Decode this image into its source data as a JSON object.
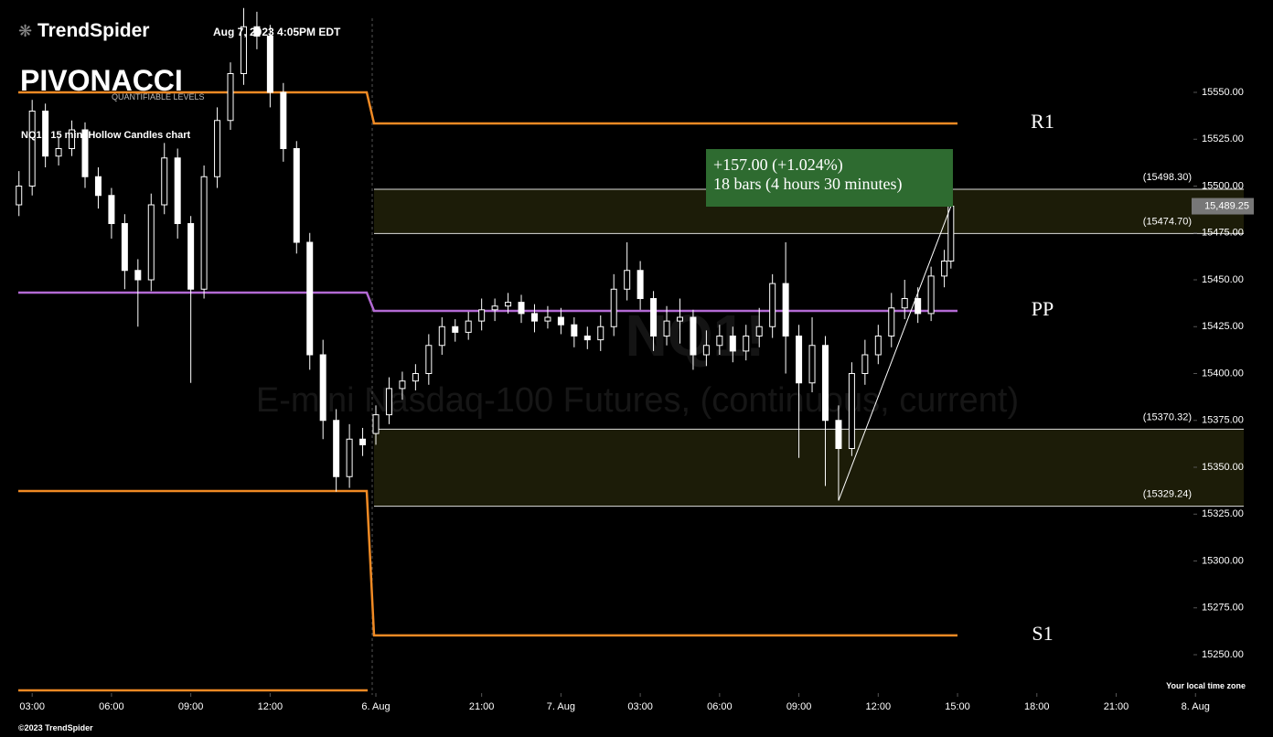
{
  "header": {
    "brand": "TrendSpider",
    "timestamp": "Aug 7, 2023 4:05PM EDT",
    "indicator": "PIVONACCI",
    "indicator_sub": "QUANTIFIABLE LEVELS",
    "chart_desc": "NQ1!, 15 min, Hollow Candles chart"
  },
  "footer": {
    "copyright": "©2023 TrendSpider",
    "timezone": "Your local time zone"
  },
  "chart_data": {
    "type": "candlestick",
    "watermark_symbol": "NQ1!",
    "watermark_name": "E-mini Nasdaq-100 Futures, (continuous, current)",
    "xlim": [
      -2.1,
      183.3
    ],
    "xticks": [
      {
        "value": 0,
        "label": "03:00"
      },
      {
        "value": 12,
        "label": "06:00"
      },
      {
        "value": 24,
        "label": "09:00"
      },
      {
        "value": 36,
        "label": "12:00"
      },
      {
        "value": 52,
        "label": "6. Aug"
      },
      {
        "value": 68,
        "label": "21:00"
      },
      {
        "value": 80,
        "label": "7. Aug"
      },
      {
        "value": 92,
        "label": "03:00"
      },
      {
        "value": 104,
        "label": "06:00"
      },
      {
        "value": 116,
        "label": "09:00"
      },
      {
        "value": 128,
        "label": "12:00"
      },
      {
        "value": 140,
        "label": "15:00"
      },
      {
        "value": 152,
        "label": "18:00"
      },
      {
        "value": 164,
        "label": "21:00"
      },
      {
        "value": 176,
        "label": "8. Aug"
      }
    ],
    "ylim": [
      15228.54,
      15599.27
    ],
    "yticks": [
      {
        "value": 15250,
        "label": "15250.00"
      },
      {
        "value": 15275,
        "label": "15275.00"
      },
      {
        "value": 15300,
        "label": "15300.00"
      },
      {
        "value": 15325,
        "label": "15325.00"
      },
      {
        "value": 15350,
        "label": "15350.00"
      },
      {
        "value": 15375,
        "label": "15375.00"
      },
      {
        "value": 15400,
        "label": "15400.00"
      },
      {
        "value": 15425,
        "label": "15425.00"
      },
      {
        "value": 15450,
        "label": "15450.00"
      },
      {
        "value": 15475,
        "label": "15475.00"
      },
      {
        "value": 15500,
        "label": "15500.00"
      },
      {
        "value": 15525,
        "label": "15525.00"
      },
      {
        "value": 15550,
        "label": "15550.00"
      }
    ],
    "candle_color": "#ffffff",
    "x": [
      -2,
      0,
      2,
      4,
      6,
      8,
      10,
      12,
      14,
      16,
      18,
      20,
      22,
      24,
      26,
      28,
      30,
      32,
      34,
      36,
      38,
      40,
      42,
      44,
      46,
      48,
      50,
      52,
      54,
      56,
      58,
      60,
      62,
      64,
      66,
      68,
      70,
      72,
      74,
      76,
      78,
      80,
      82,
      84,
      86,
      88,
      90,
      92,
      94,
      96,
      98,
      100,
      102,
      104,
      106,
      108,
      110,
      112,
      114,
      116,
      118,
      120,
      122,
      124,
      126,
      128,
      130,
      132,
      134,
      136,
      138,
      139
    ],
    "open": [
      15490,
      15500,
      15540,
      15516,
      15520,
      15530,
      15505,
      15495,
      15480,
      15455,
      15450,
      15490,
      15515,
      15480,
      15445,
      15505,
      15535,
      15560,
      15585,
      15580,
      15550,
      15520,
      15470,
      15410,
      15375,
      15345,
      15365,
      15368,
      15378,
      15392,
      15396,
      15400,
      15415,
      15425,
      15422,
      15428,
      15434,
      15436,
      15438,
      15432,
      15428,
      15430,
      15426,
      15420,
      15418,
      15425,
      15445,
      15455,
      15440,
      15420,
      15428,
      15430,
      15410,
      15415,
      15420,
      15412,
      15420,
      15425,
      15448,
      15420,
      15395,
      15415,
      15375,
      15360,
      15400,
      15410,
      15420,
      15435,
      15440,
      15432,
      15452,
      15460
    ],
    "high": [
      15508,
      15546,
      15544,
      15526,
      15535,
      15534,
      15510,
      15499,
      15485,
      15461,
      15496,
      15523,
      15520,
      15484,
      15511,
      15542,
      15566,
      15595,
      15593,
      15586,
      15555,
      15524,
      15475,
      15418,
      15381,
      15373,
      15371,
      15383,
      15398,
      15401,
      15405,
      15421,
      15430,
      15429,
      15433,
      15440,
      15440,
      15443,
      15442,
      15437,
      15436,
      15435,
      15430,
      15425,
      15431,
      15453,
      15470,
      15460,
      15444,
      15436,
      15440,
      15434,
      15423,
      15426,
      15425,
      15426,
      15435,
      15453,
      15470,
      15426,
      15430,
      15420,
      15383,
      15406,
      15418,
      15426,
      15443,
      15450,
      15446,
      15457,
      15466,
      15494
    ],
    "low": [
      15484,
      15495,
      15510,
      15511,
      15516,
      15499,
      15488,
      15472,
      15445,
      15425,
      15444,
      15485,
      15472,
      15395,
      15440,
      15499,
      15530,
      15554,
      15573,
      15542,
      15513,
      15464,
      15402,
      15365,
      15337,
      15339,
      15356,
      15362,
      15373,
      15386,
      15391,
      15394,
      15410,
      15417,
      15418,
      15423,
      15428,
      15432,
      15427,
      15422,
      15424,
      15421,
      15414,
      15413,
      15412,
      15420,
      15439,
      15434,
      15412,
      15415,
      15416,
      15402,
      15404,
      15410,
      15406,
      15407,
      15414,
      15419,
      15400,
      15355,
      15390,
      15340,
      15332.25,
      15356,
      15394,
      15405,
      15414,
      15429,
      15427,
      15428,
      15446,
      15456
    ],
    "close": [
      15500,
      15540,
      15516,
      15520,
      15530,
      15505,
      15495,
      15480,
      15455,
      15450,
      15490,
      15515,
      15480,
      15445,
      15505,
      15535,
      15560,
      15585,
      15580,
      15550,
      15520,
      15470,
      15410,
      15375,
      15345,
      15365,
      15362,
      15378,
      15392,
      15396,
      15400,
      15415,
      15425,
      15422,
      15428,
      15434,
      15436,
      15438,
      15432,
      15428,
      15430,
      15426,
      15420,
      15418,
      15425,
      15445,
      15455,
      15440,
      15420,
      15428,
      15430,
      15410,
      15415,
      15420,
      15412,
      15420,
      15425,
      15448,
      15420,
      15395,
      15415,
      15375,
      15360,
      15400,
      15410,
      15420,
      15435,
      15440,
      15432,
      15452,
      15460,
      15489.25
    ],
    "pivot_lines": [
      {
        "label": "R1",
        "color": "#f08a24",
        "prev_value": 15550,
        "value": 15533.4
      },
      {
        "label": "PP",
        "color": "#b36ad4",
        "prev_value": 15443.2,
        "value": 15433.4
      },
      {
        "label": "S1",
        "color": "#f08a24",
        "prev_value": 15337.3,
        "value": 15260.3
      },
      {
        "color": "#f08a24",
        "prev_value": 15231
      }
    ],
    "zones": [
      {
        "color": "#1c1c08",
        "top": {
          "value": 15498.3,
          "label": "(15498.30)"
        },
        "bottom": {
          "value": 15474.7,
          "label": "(15474.70)"
        }
      },
      {
        "color": "#1c1c08",
        "top": {
          "value": 15370.32,
          "label": "(15370.32)"
        },
        "bottom": {
          "value": 15329.24,
          "label": "(15329.24)"
        }
      }
    ],
    "last_price": {
      "value": 15489.25,
      "label": "15,489.25"
    },
    "measure": {
      "line1": "+157.00 (+1.024%)",
      "line2": "18 bars (4 hours 30 minutes)",
      "color": "#2e6b30",
      "from": 62,
      "to": 71
    }
  }
}
